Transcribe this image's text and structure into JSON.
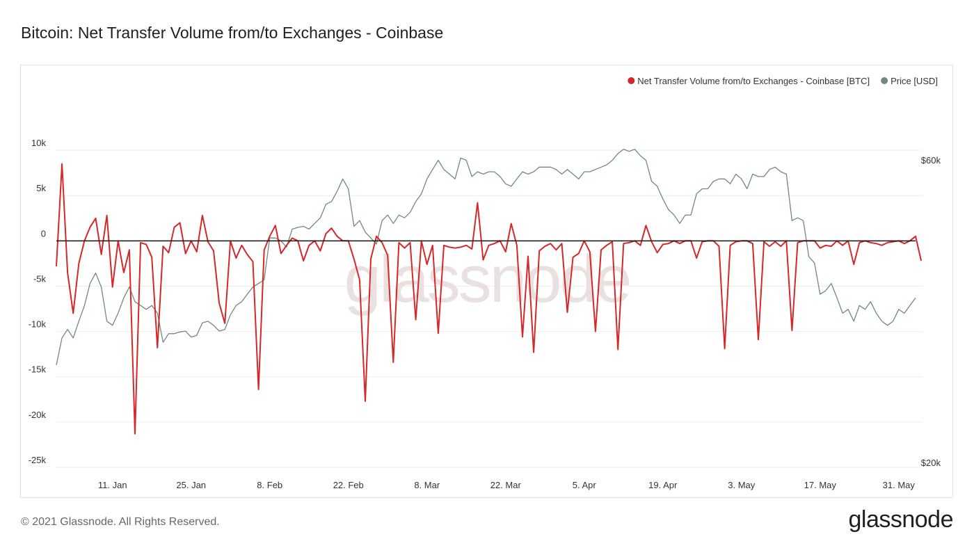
{
  "title": "Bitcoin: Net Transfer Volume from/to Exchanges - Coinbase",
  "footer": {
    "copyright": "© 2021 Glassnode. All Rights Reserved.",
    "logo": "glassnode"
  },
  "watermark": "glassnode",
  "colors": {
    "net_flow": "#d62728",
    "price": "#6f8a7c",
    "zero_line": "#111111",
    "grid": "#eeeeee"
  },
  "chart_data": {
    "type": "line",
    "title": "Bitcoin: Net Transfer Volume from/to Exchanges - Coinbase",
    "x_start": "2021-01-01",
    "x_end": "2021-06-03",
    "legend_position": "top-right",
    "grid": true,
    "y_left": {
      "lim": [
        -25000,
        12000
      ],
      "ticks": [
        10000,
        5000,
        0,
        -5000,
        -10000,
        -15000,
        -20000,
        -25000
      ],
      "tick_labels": [
        "10k",
        "5k",
        "0",
        "-5k",
        "-10k",
        "-15k",
        "-20k",
        "-25k"
      ]
    },
    "y_right": {
      "scale": "log",
      "ticks": [
        60000,
        20000
      ],
      "tick_labels": [
        "$60k",
        "$20k"
      ]
    },
    "x_ticks": [
      {
        "date": "2021-01-11",
        "label": "11. Jan"
      },
      {
        "date": "2021-01-25",
        "label": "25. Jan"
      },
      {
        "date": "2021-02-08",
        "label": "8. Feb"
      },
      {
        "date": "2021-02-22",
        "label": "22. Feb"
      },
      {
        "date": "2021-03-08",
        "label": "8. Mar"
      },
      {
        "date": "2021-03-22",
        "label": "22. Mar"
      },
      {
        "date": "2021-04-05",
        "label": "5. Apr"
      },
      {
        "date": "2021-04-19",
        "label": "19. Apr"
      },
      {
        "date": "2021-05-03",
        "label": "3. May"
      },
      {
        "date": "2021-05-17",
        "label": "17. May"
      },
      {
        "date": "2021-05-31",
        "label": "31. May"
      }
    ],
    "series": [
      {
        "name": "Net Transfer Volume from/to Exchanges - Coinbase [BTC]",
        "axis": "left",
        "color": "#d62728",
        "values": [
          -2800,
          8500,
          -3500,
          -8000,
          -2500,
          0,
          1500,
          2500,
          -1500,
          2800,
          -5100,
          0,
          -3500,
          -1000,
          -21300,
          -200,
          -400,
          -1800,
          -11800,
          -600,
          -1300,
          1500,
          2000,
          -1400,
          0,
          -1200,
          2800,
          -100,
          -1100,
          -6900,
          -9100,
          0,
          -1900,
          -500,
          -1500,
          -2300,
          -16400,
          -1000,
          500,
          1700,
          -1400,
          -500,
          300,
          0,
          -2200,
          -500,
          0,
          -1100,
          800,
          1400,
          500,
          0,
          0,
          -2000,
          -4300,
          -17700,
          -2000,
          500,
          -200,
          -1600,
          -13400,
          -200,
          -800,
          -200,
          -8700,
          0,
          -2600,
          -500,
          -10200,
          -500,
          -700,
          -800,
          -700,
          -500,
          -900,
          4200,
          -2100,
          -500,
          -300,
          0,
          -1200,
          1900,
          -500,
          -10600,
          -1700,
          -12300,
          -1100,
          -600,
          -300,
          -1000,
          -300,
          -7900,
          -1800,
          -1400,
          0,
          -1200,
          -10000,
          -1000,
          -500,
          -100,
          -12000,
          -300,
          -200,
          0,
          -500,
          1700,
          -100,
          -1300,
          -400,
          -300,
          0,
          -300,
          0,
          0,
          -1900,
          -100,
          0,
          0,
          -600,
          -11900,
          -500,
          -100,
          0,
          0,
          -300,
          -10900,
          -100,
          -600,
          -100,
          -600,
          0,
          -9900,
          -200,
          0,
          0,
          0,
          -800,
          -500,
          -600,
          0,
          -500,
          0,
          -2600,
          -200,
          0,
          -200,
          -300,
          -500,
          -200,
          -100,
          0,
          -300,
          0,
          500,
          -2200
        ]
      },
      {
        "name": "Price [USD]",
        "axis": "right",
        "color": "#6f8a7c",
        "values": [
          29000,
          32000,
          33000,
          32000,
          34000,
          36000,
          39000,
          40500,
          38500,
          34000,
          33500,
          35000,
          37000,
          38500,
          36500,
          36000,
          35500,
          36000,
          35000,
          31500,
          32500,
          32500,
          32700,
          32800,
          32100,
          32300,
          33800,
          34000,
          33500,
          32800,
          33000,
          34800,
          36000,
          36500,
          37500,
          38500,
          39000,
          39500,
          46000,
          46000,
          45500,
          44500,
          47500,
          47800,
          48000,
          47500,
          48500,
          49500,
          52000,
          52500,
          54500,
          57000,
          55000,
          48000,
          49000,
          47000,
          46000,
          45000,
          49000,
          50000,
          48500,
          50000,
          49500,
          50500,
          52500,
          54000,
          57000,
          59000,
          61000,
          59000,
          58000,
          57000,
          61500,
          61000,
          57500,
          58500,
          58000,
          58500,
          58500,
          57500,
          56000,
          55500,
          57000,
          58500,
          58000,
          58500,
          59500,
          59500,
          59500,
          59000,
          58000,
          59000,
          58000,
          57000,
          58500,
          58500,
          59000,
          59500,
          60000,
          61000,
          62500,
          63500,
          63000,
          63500,
          62000,
          61000,
          56500,
          55500,
          53000,
          51000,
          50000,
          48500,
          50000,
          50000,
          54000,
          55000,
          55000,
          56500,
          57000,
          57000,
          56000,
          58000,
          57000,
          55000,
          58000,
          57500,
          57500,
          59000,
          59500,
          58500,
          58000,
          49000,
          49500,
          49000,
          43000,
          42000,
          37500,
          38000,
          39000,
          37000,
          35000,
          35500,
          34000,
          36000,
          35500,
          36500,
          35000,
          34000,
          33500,
          34000,
          35500,
          35000,
          36000,
          37000
        ]
      }
    ]
  }
}
